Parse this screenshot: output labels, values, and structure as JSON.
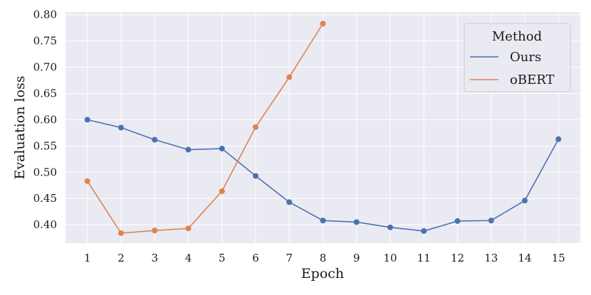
{
  "chart_data": {
    "type": "line",
    "xlabel": "Epoch",
    "ylabel": "Evaluation loss",
    "x": [
      1,
      2,
      3,
      4,
      5,
      6,
      7,
      8,
      9,
      10,
      11,
      12,
      13,
      14,
      15
    ],
    "xlim": [
      0.35,
      15.65
    ],
    "ylim": [
      0.365,
      0.805
    ],
    "x_ticks": [
      "1",
      "2",
      "3",
      "4",
      "5",
      "6",
      "7",
      "8",
      "9",
      "10",
      "11",
      "12",
      "13",
      "14",
      "15"
    ],
    "y_ticks": [
      "0.40",
      "0.45",
      "0.50",
      "0.55",
      "0.60",
      "0.65",
      "0.70",
      "0.75",
      "0.80"
    ],
    "grid": true,
    "legend": {
      "title": "Method",
      "position": "top-right"
    },
    "series": [
      {
        "name": "Ours",
        "color": "#4c72b0",
        "x": [
          1,
          2,
          3,
          4,
          5,
          6,
          7,
          8,
          9,
          10,
          11,
          12,
          13,
          14,
          15
        ],
        "values": [
          0.6,
          0.585,
          0.562,
          0.543,
          0.545,
          0.493,
          0.443,
          0.408,
          0.405,
          0.395,
          0.388,
          0.407,
          0.408,
          0.446,
          0.563
        ]
      },
      {
        "name": "oBERT",
        "color": "#dd8452",
        "x": [
          1,
          2,
          3,
          4,
          5,
          6,
          7,
          8
        ],
        "values": [
          0.483,
          0.384,
          0.389,
          0.393,
          0.464,
          0.586,
          0.681,
          0.783
        ]
      }
    ]
  }
}
